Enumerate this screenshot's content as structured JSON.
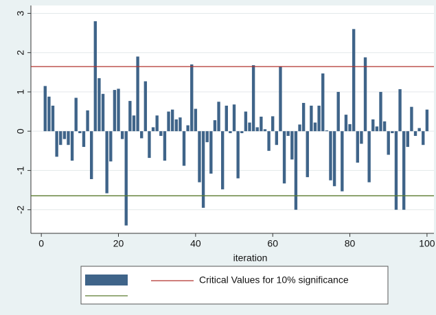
{
  "chart_data": {
    "type": "bar",
    "x": [
      1,
      2,
      3,
      4,
      5,
      6,
      7,
      8,
      9,
      10,
      11,
      12,
      13,
      14,
      15,
      16,
      17,
      18,
      19,
      20,
      21,
      22,
      23,
      24,
      25,
      26,
      27,
      28,
      29,
      30,
      31,
      32,
      33,
      34,
      35,
      36,
      37,
      38,
      39,
      40,
      41,
      42,
      43,
      44,
      45,
      46,
      47,
      48,
      49,
      50,
      51,
      52,
      53,
      54,
      55,
      56,
      57,
      58,
      59,
      60,
      61,
      62,
      63,
      64,
      65,
      66,
      67,
      68,
      69,
      70,
      71,
      72,
      73,
      74,
      75,
      76,
      77,
      78,
      79,
      80,
      81,
      82,
      83,
      84,
      85,
      86,
      87,
      88,
      89,
      90,
      91,
      92,
      93,
      94,
      95,
      96,
      97,
      98,
      99,
      100
    ],
    "series": [
      {
        "color": "#3f6489",
        "values": [
          1.15,
          0.88,
          0.65,
          -0.65,
          -0.35,
          -0.2,
          -0.35,
          -0.75,
          0.85,
          -0.05,
          -0.4,
          0.53,
          -1.22,
          2.8,
          1.35,
          0.95,
          -1.58,
          -0.77,
          1.05,
          1.08,
          -0.2,
          -2.4,
          0.77,
          0.4,
          1.9,
          -0.18,
          1.27,
          -0.68,
          0.1,
          0.4,
          -0.12,
          -0.75,
          0.5,
          0.55,
          0.3,
          0.35,
          -0.88,
          0.15,
          1.7,
          0.57,
          -1.3,
          -1.95,
          -0.28,
          -1.08,
          0.28,
          0.75,
          -1.48,
          0.65,
          -0.05,
          0.68,
          -1.2,
          -0.05,
          0.5,
          0.22,
          1.68,
          0.1,
          0.37,
          0.05,
          -0.5,
          0.38,
          -0.35,
          1.65,
          -1.33,
          -0.12,
          -0.72,
          -2.0,
          0.17,
          0.72,
          -1.17,
          0.65,
          0.22,
          0.65,
          1.47,
          0.02,
          -1.25,
          -1.4,
          1.0,
          -1.53,
          0.42,
          0.18,
          2.6,
          -0.8,
          -0.32,
          1.88,
          -1.3,
          0.3,
          0.12,
          1.0,
          0.25,
          -0.6,
          -0.05,
          -2.0,
          1.07,
          -2.0,
          -0.4,
          0.62,
          -0.12,
          0.08,
          -0.35,
          0.55
        ]
      }
    ],
    "hlines": [
      {
        "name": "Critical Values for 10% significance",
        "value": 1.645,
        "color": "#b0302c"
      },
      {
        "value": -1.645,
        "color": "#5a7a2e"
      }
    ],
    "xlabel": "iteration",
    "xlim": [
      -2.7,
      101.8
    ],
    "xticks": [
      0,
      20,
      40,
      60,
      80,
      100
    ],
    "ylim": [
      -2.6,
      3.2
    ],
    "yticks": [
      -2,
      -1,
      0,
      1,
      2,
      3
    ],
    "grid": true
  }
}
